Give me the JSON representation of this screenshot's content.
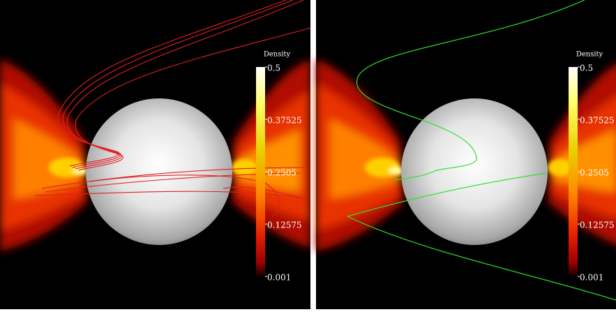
{
  "panels": [
    {
      "colorbar": {
        "title": "Density",
        "ticks": [
          0.5,
          0.37525,
          0.2505,
          0.12575,
          0.001
        ]
      }
    },
    {
      "colorbar": {
        "title": "Density",
        "ticks": [
          0.5,
          0.37525,
          0.2505,
          0.12575,
          0.001
        ]
      }
    }
  ]
}
